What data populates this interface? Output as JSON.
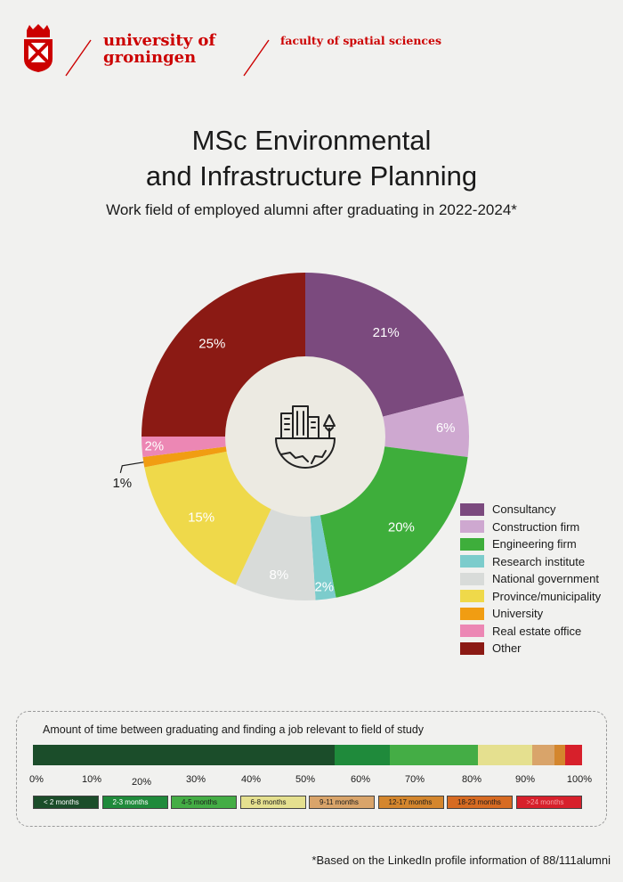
{
  "header": {
    "university_line1": "university of",
    "university_line2": "groningen",
    "faculty": "faculty of spatial sciences",
    "brand_color": "#cc0000",
    "crest": "university-crest-icon"
  },
  "title_line1": "MSc Environmental",
  "title_line2": "and Infrastructure Planning",
  "subtitle": "Work field of employed alumni after graduating in 2022-2024*",
  "center_icon": "city-globe-icon",
  "chart_data": [
    {
      "type": "pie",
      "style": "donut",
      "title": "Work field of employed alumni after graduating in 2022-2024*",
      "legend_position": "right",
      "series": [
        {
          "name": "Consultancy",
          "value": 21,
          "label": "21%",
          "color": "#7b4a7e"
        },
        {
          "name": "Construction firm",
          "value": 6,
          "label": "6%",
          "color": "#cea8d0"
        },
        {
          "name": "Engineering firm",
          "value": 20,
          "label": "20%",
          "color": "#3eae3b"
        },
        {
          "name": "Research institute",
          "value": 2,
          "label": "2%",
          "color": "#7ccccc"
        },
        {
          "name": "National government",
          "value": 8,
          "label": "8%",
          "color": "#d8dbd9"
        },
        {
          "name": "Province/municipality",
          "value": 15,
          "label": "15%",
          "color": "#efd94a"
        },
        {
          "name": "University",
          "value": 1,
          "label": "1%",
          "color": "#f19d12"
        },
        {
          "name": "Real estate office",
          "value": 2,
          "label": "2%",
          "color": "#ec87b4"
        },
        {
          "name": "Other",
          "value": 25,
          "label": "25%",
          "color": "#8b1a14"
        }
      ]
    },
    {
      "type": "bar",
      "orientation": "horizontal-stacked",
      "title": "Amount of time between graduating and finding a job relevant to field of study",
      "xlim": [
        0,
        100
      ],
      "ticks": [
        "0%",
        "10%",
        "20%",
        "30%",
        "40%",
        "50%",
        "60%",
        "70%",
        "80%",
        "90%",
        "100%"
      ],
      "series": [
        {
          "name": "< 2 months",
          "value": 55,
          "color": "#1b4d2a"
        },
        {
          "name": "2-3 months",
          "value": 10,
          "color": "#1f8a3b"
        },
        {
          "name": "4-5 months",
          "value": 16,
          "color": "#44ad45"
        },
        {
          "name": "6-8 months",
          "value": 10,
          "color": "#e5e08f"
        },
        {
          "name": "9-11 months",
          "value": 4,
          "color": "#d9a46a"
        },
        {
          "name": "12-17 months",
          "value": 2,
          "color": "#d4862d"
        },
        {
          "name": "18-23 months",
          "value": 0,
          "color": "#d76b22"
        },
        {
          "name": ">24 months",
          "value": 3,
          "color": "#d7202b"
        }
      ]
    }
  ],
  "footnote": "*Based on the LinkedIn profile information of 88/111alumni"
}
